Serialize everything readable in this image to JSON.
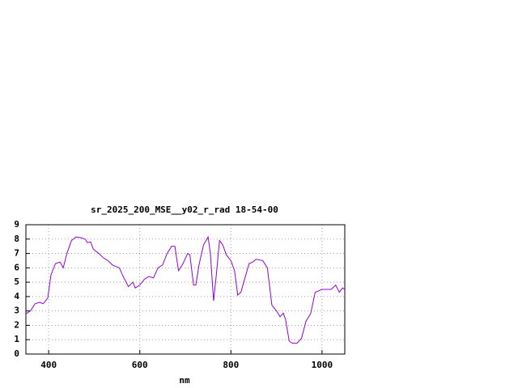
{
  "chart_data": {
    "type": "line",
    "title": "sr_2025_200_MSE__y02_r_rad 18-54-00",
    "x_label": "nm",
    "x": [
      350,
      360,
      370,
      380,
      388,
      398,
      405,
      415,
      425,
      432,
      440,
      450,
      460,
      470,
      480,
      485,
      492,
      498,
      510,
      520,
      530,
      540,
      555,
      565,
      575,
      585,
      590,
      600,
      610,
      620,
      630,
      640,
      650,
      660,
      670,
      677,
      685,
      695,
      705,
      710,
      718,
      723,
      730,
      740,
      750,
      755,
      762,
      768,
      775,
      782,
      790,
      800,
      808,
      815,
      822,
      830,
      840,
      848,
      855,
      870,
      880,
      890,
      900,
      908,
      915,
      920,
      928,
      935,
      945,
      955,
      965,
      975,
      985,
      1000,
      1010,
      1020,
      1030,
      1038,
      1045,
      1050
    ],
    "series": [
      {
        "color": "#9400d3",
        "values": [
          2.8,
          3.0,
          3.5,
          3.6,
          3.5,
          3.9,
          5.5,
          6.3,
          6.4,
          6.0,
          7.0,
          7.9,
          8.15,
          8.1,
          8.0,
          7.75,
          7.8,
          7.3,
          7.0,
          6.7,
          6.5,
          6.2,
          6.0,
          5.3,
          4.7,
          5.0,
          4.6,
          4.8,
          5.2,
          5.4,
          5.3,
          6.0,
          6.2,
          7.0,
          7.5,
          7.5,
          5.8,
          6.3,
          7.0,
          6.9,
          4.8,
          4.8,
          6.2,
          7.6,
          8.15,
          7.0,
          3.7,
          5.5,
          7.9,
          7.6,
          6.9,
          6.5,
          5.8,
          4.1,
          4.3,
          5.2,
          6.3,
          6.4,
          6.6,
          6.5,
          6.0,
          3.4,
          3.0,
          2.6,
          2.85,
          2.4,
          0.9,
          0.75,
          0.75,
          1.1,
          2.3,
          2.8,
          4.3,
          4.5,
          4.5,
          4.5,
          4.8,
          4.3,
          4.6,
          4.5
        ]
      }
    ],
    "xlim": [
      350,
      1050
    ],
    "xticks": [
      400,
      600,
      800,
      1000
    ],
    "ylim": [
      0,
      9
    ],
    "yticks": [
      0,
      1,
      2,
      3,
      4,
      5,
      6,
      7,
      8,
      9
    ],
    "grid": true
  }
}
